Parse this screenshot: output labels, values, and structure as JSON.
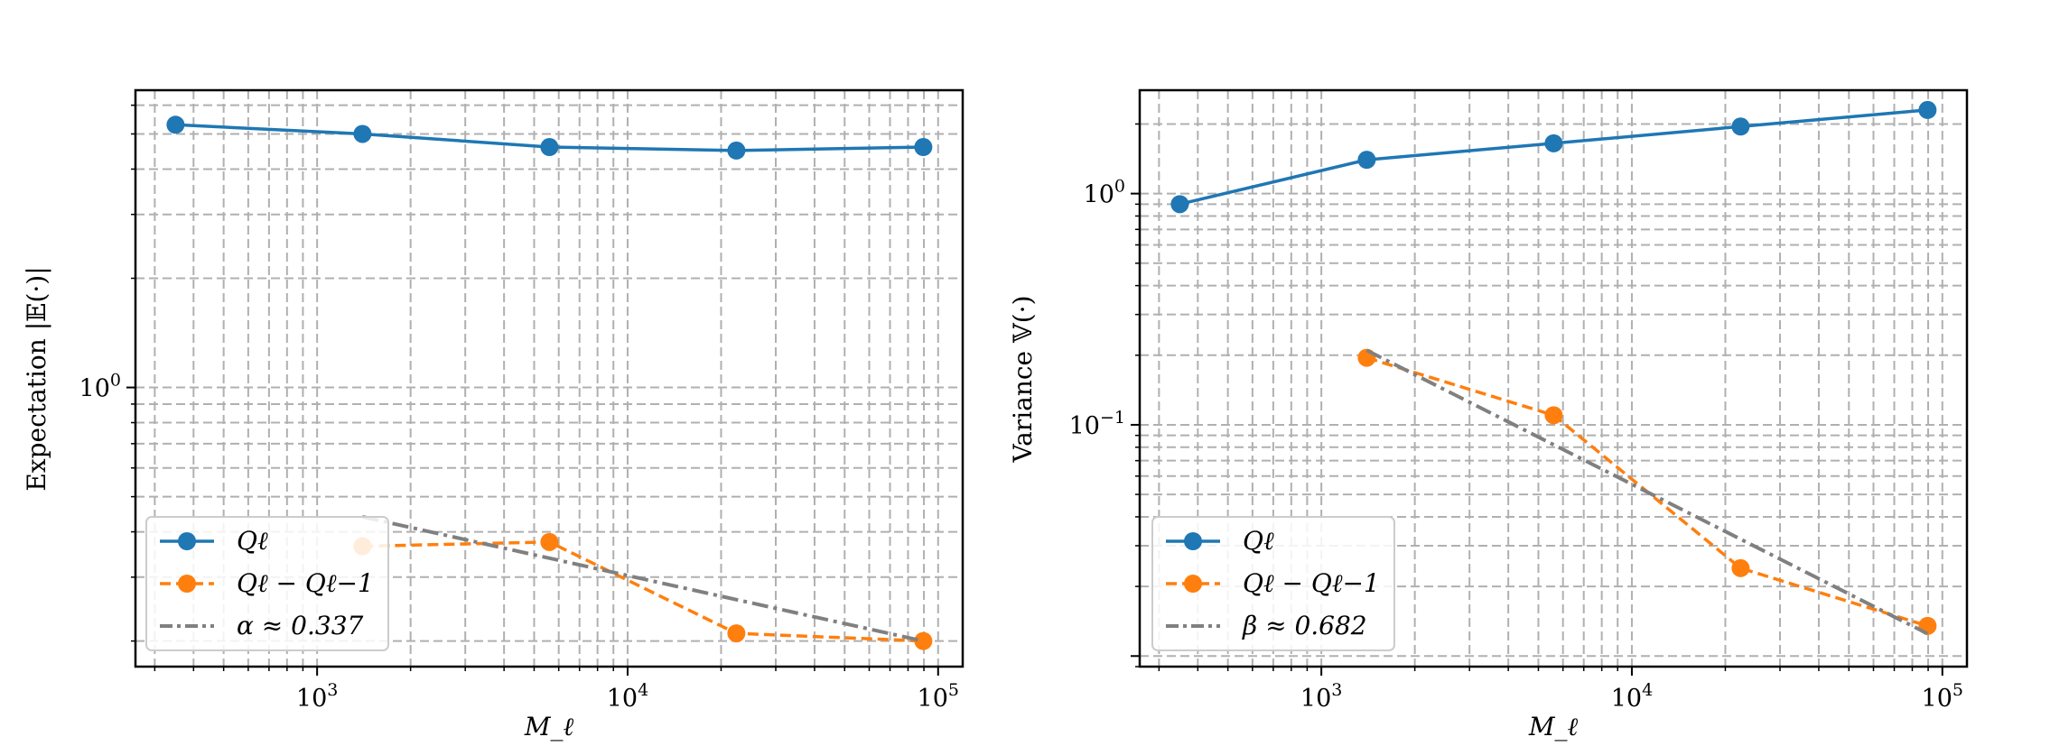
{
  "chart_data": [
    {
      "type": "line",
      "xscale": "log",
      "yscale": "log",
      "xlim": [
        260,
        120000
      ],
      "ylim": [
        0.17,
        6.6
      ],
      "xlabel": "M_ℓ",
      "ylabel": "Expectation |𝔼(·)|",
      "grid": true,
      "legend_position": "lower-left",
      "x_ticks": [
        {
          "value": 1000,
          "base": "10",
          "exp": "3"
        },
        {
          "value": 10000,
          "base": "10",
          "exp": "4"
        },
        {
          "value": 100000,
          "base": "10",
          "exp": "5"
        }
      ],
      "y_ticks": [
        {
          "value": 1,
          "base": "10",
          "exp": "0"
        }
      ],
      "series": [
        {
          "name": "Q_ℓ",
          "legend": "Qℓ",
          "color": "#1f77b4",
          "style": "solid-marker",
          "x": [
            350,
            1400,
            5600,
            22400,
            89600
          ],
          "y": [
            5.3,
            5.0,
            4.6,
            4.5,
            4.6
          ]
        },
        {
          "name": "Q_ℓ − Q_ℓ−1",
          "legend": "Qℓ − Qℓ−1",
          "color": "#ff7f0e",
          "style": "dashed-marker",
          "x": [
            1400,
            5600,
            22400,
            89600
          ],
          "y": [
            0.365,
            0.375,
            0.21,
            0.2
          ]
        },
        {
          "name": "alpha fit",
          "legend": "α ≈ 0.337",
          "color": "#808080",
          "style": "dashdot",
          "x": [
            1400,
            89600
          ],
          "y": [
            0.44,
            0.2
          ]
        }
      ]
    },
    {
      "type": "line",
      "xscale": "log",
      "yscale": "log",
      "xlim": [
        260,
        120000
      ],
      "ylim": [
        0.009,
        2.8
      ],
      "xlabel": "M_ℓ",
      "ylabel": "Variance 𝕍(·)",
      "grid": true,
      "legend_position": "lower-left",
      "x_ticks": [
        {
          "value": 1000,
          "base": "10",
          "exp": "3"
        },
        {
          "value": 10000,
          "base": "10",
          "exp": "4"
        },
        {
          "value": 100000,
          "base": "10",
          "exp": "5"
        }
      ],
      "y_ticks": [
        {
          "value": 1,
          "base": "10",
          "exp": "0"
        },
        {
          "value": 0.1,
          "base": "10",
          "exp": "−1"
        }
      ],
      "series": [
        {
          "name": "Q_ℓ",
          "legend": "Qℓ",
          "color": "#1f77b4",
          "style": "solid-marker",
          "x": [
            350,
            1400,
            5600,
            22400,
            89600
          ],
          "y": [
            0.9,
            1.4,
            1.65,
            1.95,
            2.3
          ]
        },
        {
          "name": "Q_ℓ − Q_ℓ−1",
          "legend": "Qℓ − Qℓ−1",
          "color": "#ff7f0e",
          "style": "dashed-marker",
          "x": [
            1400,
            5600,
            22400,
            89600
          ],
          "y": [
            0.195,
            0.11,
            0.024,
            0.0135
          ]
        },
        {
          "name": "beta fit",
          "legend": "β ≈ 0.682",
          "color": "#808080",
          "style": "dashdot",
          "x": [
            1400,
            89600
          ],
          "y": [
            0.21,
            0.0125
          ]
        }
      ]
    }
  ]
}
